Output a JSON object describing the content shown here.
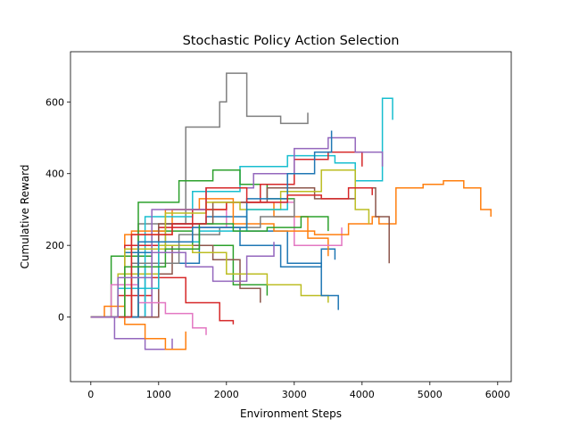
{
  "chart_data": {
    "type": "line",
    "title": "Stochastic Policy Action Selection",
    "xlabel": "Environment Steps",
    "ylabel": "Cumulative Reward",
    "xlim": [
      -300,
      6200
    ],
    "ylim": [
      -180,
      740
    ],
    "xticks": [
      0,
      1000,
      2000,
      3000,
      4000,
      5000,
      6000
    ],
    "yticks": [
      0,
      200,
      400,
      600
    ],
    "grid": false,
    "legend": "none",
    "colors": [
      "#1f77b4",
      "#ff7f0e",
      "#2ca02c",
      "#d62728",
      "#9467bd",
      "#8c564b",
      "#e377c2",
      "#7f7f7f",
      "#bcbd22",
      "#17becf"
    ],
    "series": [
      {
        "x": [
          0,
          800,
          1600,
          2200,
          2800,
          3400,
          3600
        ],
        "y": [
          0,
          150,
          250,
          200,
          140,
          190,
          160
        ]
      },
      {
        "x": [
          0,
          500,
          1200,
          2000,
          2700,
          3200,
          3500
        ],
        "y": [
          0,
          230,
          300,
          320,
          280,
          220,
          170
        ]
      },
      {
        "x": [
          0,
          300,
          900,
          1500,
          2100,
          2600
        ],
        "y": [
          0,
          170,
          240,
          200,
          90,
          60
        ]
      },
      {
        "x": [
          0,
          400,
          900,
          1400,
          1900,
          2100
        ],
        "y": [
          0,
          60,
          110,
          40,
          -10,
          -20
        ]
      },
      {
        "x": [
          0,
          350,
          800,
          1200
        ],
        "y": [
          0,
          -60,
          -90,
          -60
        ]
      },
      {
        "x": [
          0,
          600,
          1200,
          1800,
          2200,
          2500
        ],
        "y": [
          0,
          120,
          200,
          160,
          80,
          40
        ]
      },
      {
        "x": [
          0,
          1000,
          2000,
          3000,
          3700
        ],
        "y": [
          0,
          250,
          320,
          200,
          250
        ]
      },
      {
        "x": [
          0,
          700,
          1400,
          1900,
          2000,
          2300,
          2800,
          3200
        ],
        "y": [
          0,
          260,
          530,
          600,
          680,
          560,
          540,
          570
        ]
      },
      {
        "x": [
          0,
          400,
          1000,
          1500,
          2000,
          2600,
          3100,
          3500
        ],
        "y": [
          0,
          120,
          200,
          180,
          120,
          90,
          60,
          40
        ]
      },
      {
        "x": [
          0,
          800,
          1500,
          2200,
          2900,
          3600,
          3900,
          4300,
          4450
        ],
        "y": [
          0,
          280,
          350,
          420,
          450,
          430,
          380,
          610,
          550
        ]
      },
      {
        "x": [
          0,
          500,
          1100,
          1700,
          2300,
          2900,
          3400,
          3650
        ],
        "y": [
          0,
          180,
          260,
          280,
          240,
          150,
          60,
          20
        ]
      },
      {
        "x": [
          0,
          600,
          1100,
          1600,
          2100,
          2700,
          3300,
          3800,
          4150,
          4250,
          4500,
          4900,
          5200,
          5500,
          5750,
          5900
        ],
        "y": [
          0,
          240,
          300,
          330,
          260,
          240,
          230,
          260,
          280,
          260,
          360,
          370,
          380,
          360,
          300,
          280
        ]
      },
      {
        "x": [
          0,
          700,
          1300,
          1800,
          2200,
          2600,
          3000
        ],
        "y": [
          0,
          320,
          380,
          410,
          370,
          330,
          320
        ]
      },
      {
        "x": [
          0,
          500,
          1000,
          1500,
          2000,
          2500,
          3000,
          3500,
          4000
        ],
        "y": [
          0,
          200,
          250,
          300,
          320,
          370,
          440,
          460,
          420
        ]
      },
      {
        "x": [
          0,
          900,
          1700,
          2400,
          3000,
          3500,
          3900,
          4300
        ],
        "y": [
          0,
          300,
          360,
          400,
          470,
          500,
          460,
          420
        ]
      },
      {
        "x": [
          0,
          1000,
          1800,
          2600,
          3300,
          3900,
          4200,
          4400
        ],
        "y": [
          0,
          260,
          320,
          360,
          330,
          360,
          280,
          150
        ]
      },
      {
        "x": [
          0,
          300,
          700,
          1100,
          1500,
          1700
        ],
        "y": [
          0,
          90,
          40,
          10,
          -30,
          -50
        ]
      },
      {
        "x": [
          0,
          600,
          1300,
          1900,
          2500,
          3000
        ],
        "y": [
          0,
          150,
          230,
          250,
          280,
          330
        ]
      },
      {
        "x": [
          0,
          500,
          1100,
          1700,
          2200,
          2800,
          3400,
          3900,
          4100
        ],
        "y": [
          0,
          190,
          290,
          320,
          300,
          350,
          410,
          300,
          260
        ]
      },
      {
        "x": [
          0,
          400,
          1000,
          1600,
          2300,
          2900
        ],
        "y": [
          0,
          80,
          210,
          240,
          300,
          330
        ]
      },
      {
        "x": [
          0,
          700,
          1500,
          2300,
          2900,
          3300,
          3550
        ],
        "y": [
          0,
          210,
          250,
          330,
          400,
          460,
          520
        ]
      },
      {
        "x": [
          0,
          200,
          500,
          800,
          1100,
          1400
        ],
        "y": [
          0,
          30,
          -20,
          -60,
          -90,
          -40
        ]
      },
      {
        "x": [
          0,
          500,
          1100,
          1600,
          2100,
          2600,
          3100,
          3500
        ],
        "y": [
          0,
          140,
          190,
          260,
          240,
          250,
          280,
          240
        ]
      },
      {
        "x": [
          0,
          600,
          1200,
          1700,
          2300,
          2900,
          3400,
          3800,
          4150
        ],
        "y": [
          0,
          230,
          260,
          360,
          320,
          340,
          330,
          360,
          340
        ]
      },
      {
        "x": [
          0,
          400,
          900,
          1400,
          1800,
          2300,
          2700
        ],
        "y": [
          0,
          110,
          180,
          140,
          100,
          170,
          210
        ]
      }
    ]
  }
}
